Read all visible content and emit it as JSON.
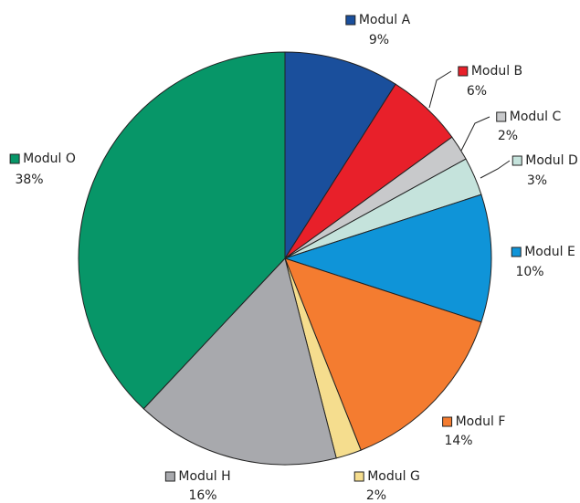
{
  "chart_data": {
    "type": "pie",
    "categories": [
      "Modul A",
      "Modul B",
      "Modul C",
      "Modul D",
      "Modul E",
      "Modul F",
      "Modul G",
      "Modul H",
      "Modul O"
    ],
    "values": [
      9,
      6,
      2,
      3,
      10,
      14,
      2,
      16,
      38
    ],
    "value_labels": [
      "9%",
      "6%",
      "2%",
      "3%",
      "10%",
      "14%",
      "2%",
      "16%",
      "38%"
    ],
    "colors": [
      "#1a4f9c",
      "#e8202a",
      "#c8c9cb",
      "#c5e3dc",
      "#0f94d8",
      "#f47c30",
      "#f5dd8e",
      "#a8a9ad",
      "#079668"
    ]
  }
}
